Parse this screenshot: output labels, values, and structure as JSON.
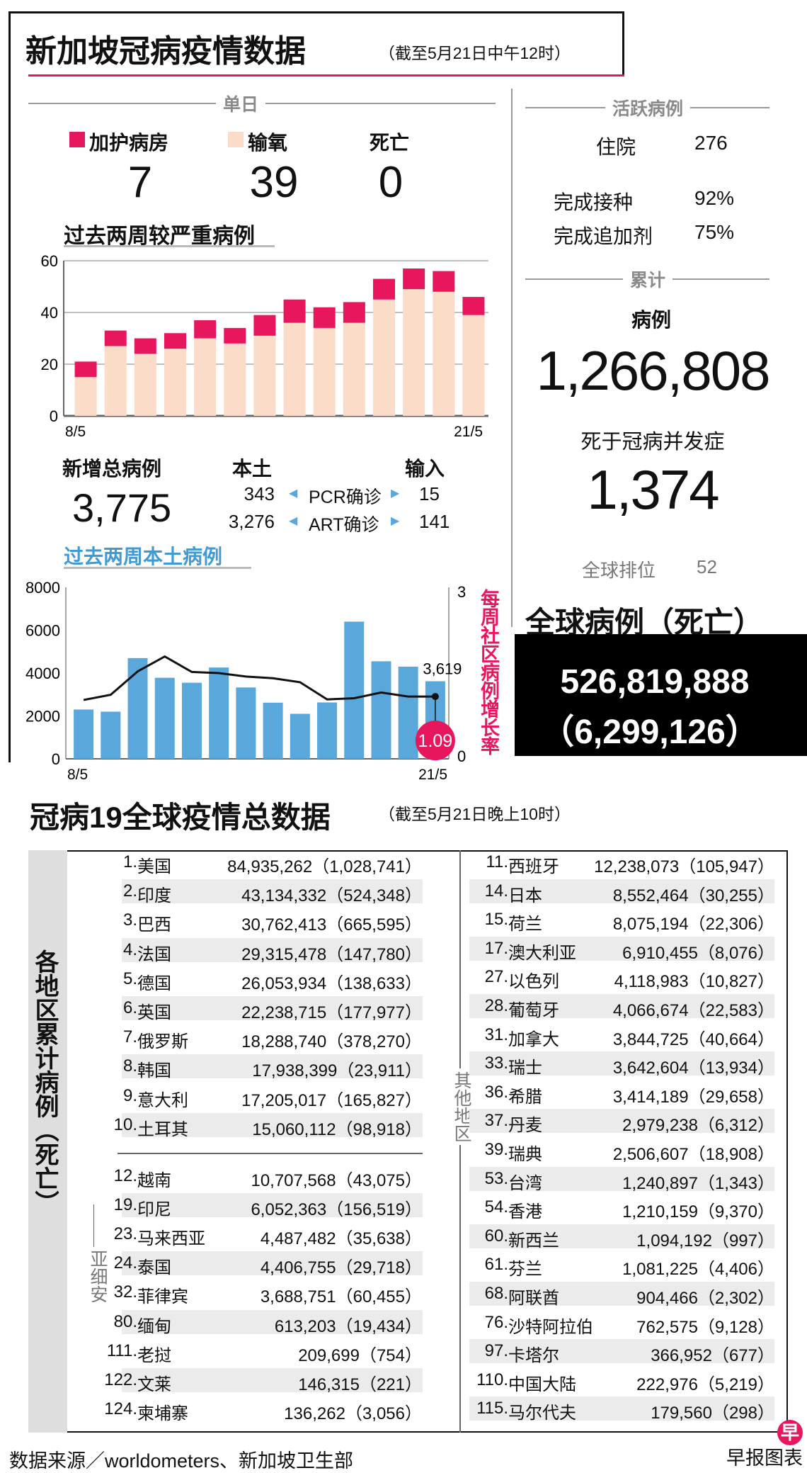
{
  "header": {
    "title": "新加坡冠病疫情数据",
    "as_of": "（截至5月21日中午12时）"
  },
  "daily": {
    "section_label": "单日",
    "icu_label": "加护病房",
    "icu_value": "7",
    "oxygen_label": "输氧",
    "oxygen_value": "39",
    "death_label": "死亡",
    "death_value": "0"
  },
  "new_cases": {
    "label": "新增总病例",
    "total": "3,775",
    "local_label": "本土",
    "import_label": "输入",
    "pcr_label": "PCR确诊",
    "pcr_local": "343",
    "pcr_import": "15",
    "art_label": "ART确诊",
    "art_local": "3,276",
    "art_import": "141"
  },
  "active": {
    "section_label": "活跃病例",
    "hospital_label": "住院",
    "hospital_value": "276",
    "vaccinated_label": "完成接种",
    "vaccinated_value": "92%",
    "booster_label": "完成追加剂",
    "booster_value": "75%"
  },
  "cumulative": {
    "section_label": "累计",
    "cases_label": "病例",
    "cases_value": "1,266,808",
    "deaths_label": "死于冠病并发症",
    "deaths_value": "1,374",
    "rank_label": "全球排位",
    "rank_value": "52"
  },
  "global": {
    "label": "全球病例（死亡）",
    "cases": "526,819,888",
    "deaths": "（6,299,126）"
  },
  "colors": {
    "pink": "#e8175d",
    "beige": "#fbdcc8",
    "blue": "#5aa7dc"
  },
  "chart_data": [
    {
      "type": "bar",
      "title": "过去两周较严重病例",
      "stacked": true,
      "x_tick_labels": [
        "8/5",
        "21/5"
      ],
      "categories": [
        "8/5",
        "9/5",
        "10/5",
        "11/5",
        "12/5",
        "13/5",
        "14/5",
        "15/5",
        "16/5",
        "17/5",
        "18/5",
        "19/5",
        "20/5",
        "21/5"
      ],
      "series": [
        {
          "name": "输氧",
          "values": [
            15,
            27,
            24,
            26,
            30,
            28,
            31,
            36,
            34,
            36,
            45,
            49,
            48,
            39
          ]
        },
        {
          "name": "加护病房",
          "values": [
            6,
            6,
            6,
            6,
            7,
            6,
            8,
            9,
            8,
            8,
            8,
            8,
            8,
            7
          ]
        }
      ],
      "ylim": [
        0,
        60
      ],
      "yticks": [
        "0",
        "20",
        "40",
        "60"
      ],
      "grid": true
    },
    {
      "type": "bar",
      "title": "过去两周本土病例",
      "x_tick_labels": [
        "8/5",
        "21/5"
      ],
      "categories": [
        "8/5",
        "9/5",
        "10/5",
        "11/5",
        "12/5",
        "13/5",
        "14/5",
        "15/5",
        "16/5",
        "17/5",
        "18/5",
        "19/5",
        "20/5",
        "21/5"
      ],
      "bars": {
        "name": "本土病例",
        "values": [
          2300,
          2200,
          4700,
          3780,
          3550,
          4260,
          3330,
          2620,
          2100,
          2630,
          6400,
          4550,
          4300,
          3619
        ]
      },
      "line": {
        "name": "每周社区病例增长率",
        "values": [
          1.03,
          1.12,
          1.53,
          1.79,
          1.52,
          1.5,
          1.44,
          1.41,
          1.34,
          1.04,
          1.06,
          1.16,
          1.09,
          1.09
        ]
      },
      "ylim": [
        0,
        8000
      ],
      "yticks": [
        "0",
        "2000",
        "4000",
        "6000",
        "8000"
      ],
      "y2lim": [
        0,
        3
      ],
      "y2ticks": [
        "0",
        "3"
      ],
      "y2label": "每周社区病例增长率",
      "annotations": {
        "last_bar": "3,619",
        "last_rate": "1.09"
      }
    }
  ],
  "world": {
    "title": "冠病19全球疫情总数据",
    "as_of": "（截至5月21日晚上10时）",
    "side_label": "各地区累计病例（死亡）",
    "asean_label": "亚细安",
    "others_label": "其他地区",
    "top10": [
      [
        "1.",
        "美国",
        "84,935,262",
        "（1,028,741）"
      ],
      [
        "2.",
        "印度",
        "43,134,332",
        "（524,348）"
      ],
      [
        "3.",
        "巴西",
        "30,762,413",
        "（665,595）"
      ],
      [
        "4.",
        "法国",
        "29,315,478",
        "（147,780）"
      ],
      [
        "5.",
        "德国",
        "26,053,934",
        "（138,633）"
      ],
      [
        "6.",
        "英国",
        "22,238,715",
        "（177,977）"
      ],
      [
        "7.",
        "俄罗斯",
        "18,288,740",
        "（378,270）"
      ],
      [
        "8.",
        "韩国",
        "17,938,399",
        "（23,911）"
      ],
      [
        "9.",
        "意大利",
        "17,205,017",
        "（165,827）"
      ],
      [
        "10.",
        "土耳其",
        "15,060,112",
        "（98,918）"
      ]
    ],
    "asean": [
      [
        "12.",
        "越南",
        "10,707,568",
        "（43,075）"
      ],
      [
        "19.",
        "印尼",
        "6,052,363",
        "（156,519）"
      ],
      [
        "23.",
        "马来西亚",
        "4,487,482",
        "（35,638）"
      ],
      [
        "24.",
        "泰国",
        "4,406,755",
        "（29,718）"
      ],
      [
        "32.",
        "菲律宾",
        "3,688,751",
        "（60,455）"
      ],
      [
        "80.",
        "缅甸",
        "613,203",
        "（19,434）"
      ],
      [
        "111.",
        "老挝",
        "209,699",
        "（754）"
      ],
      [
        "122.",
        "文莱",
        "146,315",
        "（221）"
      ],
      [
        "124.",
        "柬埔寨",
        "136,262",
        "（3,056）"
      ]
    ],
    "others": [
      [
        "11.",
        "西班牙",
        "12,238,073",
        "（105,947）"
      ],
      [
        "14.",
        "日本",
        "8,552,464",
        "（30,255）"
      ],
      [
        "15.",
        "荷兰",
        "8,075,194",
        "（22,306）"
      ],
      [
        "17.",
        "澳大利亚",
        "6,910,455",
        "（8,076）"
      ],
      [
        "27.",
        "以色列",
        "4,118,983",
        "（10,827）"
      ],
      [
        "28.",
        "葡萄牙",
        "4,066,674",
        "（22,583）"
      ],
      [
        "31.",
        "加拿大",
        "3,844,725",
        "（40,664）"
      ],
      [
        "33.",
        "瑞士",
        "3,642,604",
        "（13,934）"
      ],
      [
        "36.",
        "希腊",
        "3,414,189",
        "（29,658）"
      ],
      [
        "37.",
        "丹麦",
        "2,979,238",
        "（6,312）"
      ],
      [
        "39.",
        "瑞典",
        "2,506,607",
        "（18,908）"
      ],
      [
        "53.",
        "台湾",
        "1,240,897",
        "（1,343）"
      ],
      [
        "54.",
        "香港",
        "1,210,159",
        "（9,370）"
      ],
      [
        "60.",
        "新西兰",
        "1,094,192",
        "（997）"
      ],
      [
        "61.",
        "芬兰",
        "1,081,225",
        "（4,406）"
      ],
      [
        "68.",
        "阿联酋",
        "904,466",
        "（2,302）"
      ],
      [
        "76.",
        "沙特阿拉伯",
        "762,575",
        "（9,128）"
      ],
      [
        "97.",
        "卡塔尔",
        "366,952",
        "（677）"
      ],
      [
        "110.",
        "中国大陆",
        "222,976",
        "（5,219）"
      ],
      [
        "115.",
        "马尔代夫",
        "179,560",
        "（298）"
      ]
    ]
  },
  "footer": {
    "source": "数据来源／worldometers、新加坡卫生部",
    "credit": "早报图表",
    "logo_char": "早"
  }
}
